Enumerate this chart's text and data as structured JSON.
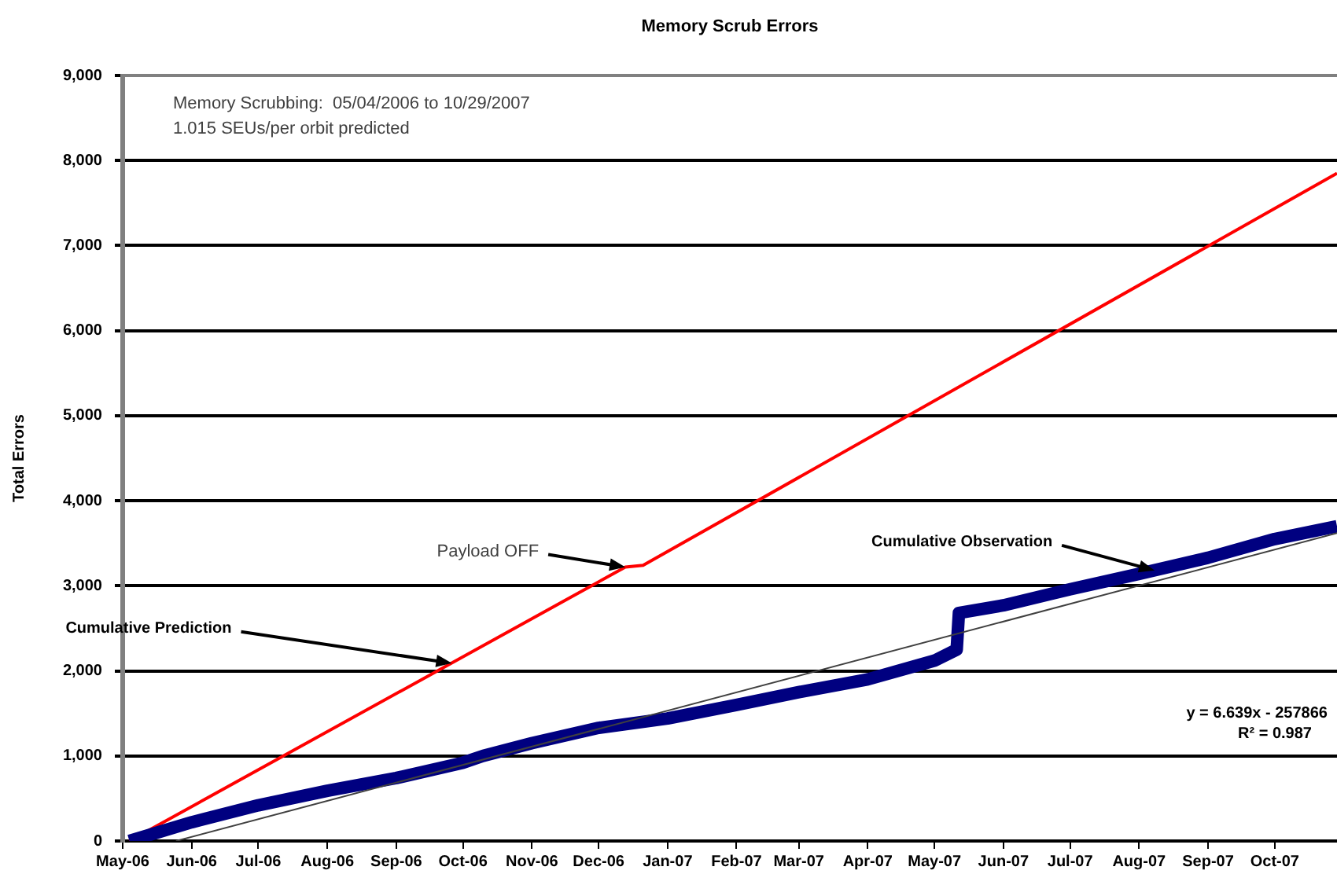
{
  "chart_data": {
    "type": "line",
    "title": "Memory Scrub Errors",
    "ylabel": "Total Errors",
    "x": [
      "2006-05-04",
      "2006-06-01",
      "2006-07-01",
      "2006-08-01",
      "2006-09-01",
      "2006-10-01",
      "2006-10-10",
      "2006-11-01",
      "2006-12-01",
      "2007-01-01",
      "2007-02-01",
      "2007-03-01",
      "2007-04-01",
      "2007-05-01",
      "2007-05-11",
      "2007-05-12",
      "2007-06-01",
      "2007-07-01",
      "2007-08-01",
      "2007-09-01",
      "2007-10-01",
      "2007-10-29"
    ],
    "series": [
      {
        "color": "#ff0000",
        "line_style": "solid",
        "x": [
          "2006-05-04",
          "2006-12-13",
          "2006-12-21",
          "2007-10-29"
        ],
        "values": [
          0,
          3220,
          3240,
          7850
        ]
      },
      {
        "color": "#000080",
        "line_style": "solid",
        "values": [
          0,
          220,
          420,
          590,
          740,
          920,
          1000,
          1150,
          1330,
          1440,
          1600,
          1750,
          1900,
          2120,
          2250,
          2680,
          2770,
          2960,
          3140,
          3330,
          3550,
          3700
        ]
      },
      {
        "color": "#404040",
        "line_style": "solid",
        "x": [
          "2006-05-25",
          "2007-10-29"
        ],
        "values": [
          0,
          3620
        ]
      }
    ],
    "xlim": [
      "2006-05-01",
      "2007-10-29"
    ],
    "xticks": [
      {
        "value": "2006-05-01",
        "label": "May-06"
      },
      {
        "value": "2006-06-01",
        "label": "Jun-06"
      },
      {
        "value": "2006-07-01",
        "label": "Jul-06"
      },
      {
        "value": "2006-08-01",
        "label": "Aug-06"
      },
      {
        "value": "2006-09-01",
        "label": "Sep-06"
      },
      {
        "value": "2006-10-01",
        "label": "Oct-06"
      },
      {
        "value": "2006-11-01",
        "label": "Nov-06"
      },
      {
        "value": "2006-12-01",
        "label": "Dec-06"
      },
      {
        "value": "2007-01-01",
        "label": "Jan-07"
      },
      {
        "value": "2007-02-01",
        "label": "Feb-07"
      },
      {
        "value": "2007-03-01",
        "label": "Mar-07"
      },
      {
        "value": "2007-04-01",
        "label": "Apr-07"
      },
      {
        "value": "2007-05-01",
        "label": "May-07"
      },
      {
        "value": "2007-06-01",
        "label": "Jun-07"
      },
      {
        "value": "2007-07-01",
        "label": "Jul-07"
      },
      {
        "value": "2007-08-01",
        "label": "Aug-07"
      },
      {
        "value": "2007-09-01",
        "label": "Sep-07"
      },
      {
        "value": "2007-10-01",
        "label": "Oct-07"
      }
    ],
    "ylim": [
      0,
      9000
    ],
    "yticks": [
      0,
      {
        "value": 1000,
        "label": "1,000"
      },
      {
        "value": 2000,
        "label": "2,000"
      },
      {
        "value": 3000,
        "label": "3,000"
      },
      {
        "value": 4000,
        "label": "4,000"
      },
      {
        "value": 5000,
        "label": "5,000"
      },
      {
        "value": 6000,
        "label": "6,000"
      },
      {
        "value": 7000,
        "label": "7,000"
      },
      {
        "value": 8000,
        "label": "8,000"
      },
      {
        "value": 9000,
        "label": "9,000"
      }
    ],
    "grid": "y",
    "legend": false,
    "marker": "none",
    "annotations": [
      "Memory Scrubbing:  05/04/2006 to 10/29/2007",
      "1.015 SEUs/per orbit predicted",
      "y = 6.639x - 257866",
      "R² = 0.987",
      {
        "text": "Payload OFF",
        "x": "2006-12-13",
        "y": 3220
      },
      {
        "text": "Cumulative Prediction",
        "x": "2006-09-26",
        "y": 2090
      },
      {
        "text": "Cumulative Observation",
        "x": "2007-08-08",
        "y": 3180
      }
    ]
  }
}
